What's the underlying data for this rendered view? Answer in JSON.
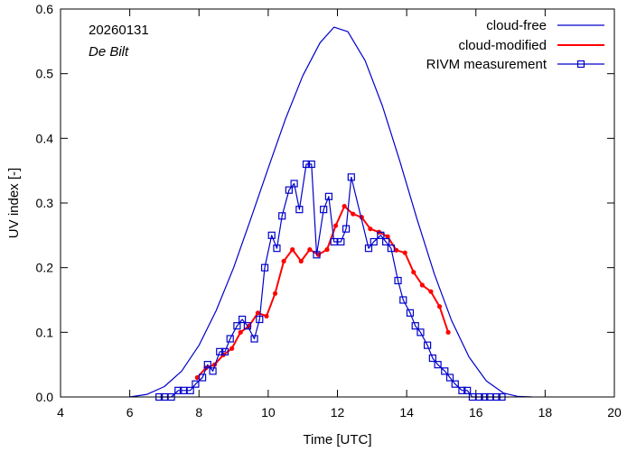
{
  "chart_data": {
    "type": "line",
    "date": "20260131",
    "station": "De Bilt",
    "xlabel": "Time  [UTC]",
    "ylabel": "UV index  [-]",
    "xlim": [
      4,
      20
    ],
    "ylim": [
      0,
      0.6
    ],
    "xticks": [
      4,
      6,
      8,
      10,
      12,
      14,
      16,
      18,
      20
    ],
    "yticks": [
      0.0,
      0.1,
      0.2,
      0.3,
      0.4,
      0.5,
      0.6
    ],
    "xtick_labels": [
      "4",
      "6",
      "8",
      "10",
      "12",
      "14",
      "16",
      "18",
      "20"
    ],
    "ytick_labels": [
      "0.0",
      "0.1",
      "0.2",
      "0.3",
      "0.4",
      "0.5",
      "0.6"
    ],
    "legend_position": "top-right",
    "series": [
      {
        "name": "cloud-free",
        "color": "#0000cc",
        "style": "line",
        "x": [
          6.0,
          6.5,
          7.0,
          7.5,
          8.0,
          8.5,
          9.0,
          9.5,
          10.0,
          10.5,
          11.0,
          11.5,
          11.9,
          12.3,
          12.8,
          13.3,
          13.8,
          14.3,
          14.8,
          15.3,
          15.8,
          16.3,
          16.8,
          17.2,
          17.6
        ],
        "y": [
          0.0,
          0.004,
          0.016,
          0.04,
          0.08,
          0.134,
          0.2,
          0.276,
          0.354,
          0.43,
          0.497,
          0.548,
          0.572,
          0.565,
          0.52,
          0.45,
          0.365,
          0.275,
          0.19,
          0.118,
          0.062,
          0.025,
          0.006,
          0.001,
          0.0
        ]
      },
      {
        "name": "cloud-modified",
        "color": "#ff0000",
        "style": "line-dot",
        "x": [
          7.95,
          8.2,
          8.45,
          8.7,
          8.95,
          9.2,
          9.45,
          9.7,
          9.95,
          10.2,
          10.45,
          10.7,
          10.95,
          11.2,
          11.45,
          11.7,
          11.95,
          12.2,
          12.45,
          12.7,
          12.95,
          13.2,
          13.45,
          13.7,
          13.95,
          14.2,
          14.45,
          14.7,
          14.95,
          15.2
        ],
        "y": [
          0.03,
          0.045,
          0.05,
          0.065,
          0.075,
          0.1,
          0.11,
          0.13,
          0.125,
          0.16,
          0.21,
          0.228,
          0.21,
          0.228,
          0.22,
          0.228,
          0.265,
          0.295,
          0.283,
          0.278,
          0.26,
          0.255,
          0.248,
          0.227,
          0.223,
          0.193,
          0.173,
          0.163,
          0.14,
          0.1
        ]
      },
      {
        "name": "RIVM measurement",
        "color": "#0000cc",
        "style": "line-square",
        "x": [
          6.85,
          7.0,
          7.2,
          7.4,
          7.55,
          7.75,
          7.9,
          8.1,
          8.25,
          8.4,
          8.6,
          8.75,
          8.9,
          9.1,
          9.25,
          9.4,
          9.6,
          9.75,
          9.9,
          10.1,
          10.25,
          10.4,
          10.6,
          10.75,
          10.9,
          11.1,
          11.25,
          11.4,
          11.6,
          11.75,
          11.9,
          12.1,
          12.25,
          12.4,
          12.9,
          13.05,
          13.25,
          13.4,
          13.55,
          13.75,
          13.9,
          14.1,
          14.25,
          14.4,
          14.6,
          14.75,
          14.9,
          15.1,
          15.25,
          15.4,
          15.6,
          15.75,
          15.9,
          16.1,
          16.25,
          16.4,
          16.6,
          16.75
        ],
        "y": [
          0.0,
          0.0,
          0.0,
          0.01,
          0.01,
          0.01,
          0.02,
          0.03,
          0.05,
          0.04,
          0.07,
          0.07,
          0.09,
          0.11,
          0.12,
          0.11,
          0.09,
          0.12,
          0.2,
          0.25,
          0.23,
          0.28,
          0.32,
          0.33,
          0.29,
          0.36,
          0.36,
          0.22,
          0.29,
          0.31,
          0.24,
          0.24,
          0.26,
          0.34,
          0.23,
          0.24,
          0.25,
          0.24,
          0.23,
          0.18,
          0.15,
          0.13,
          0.11,
          0.1,
          0.08,
          0.06,
          0.05,
          0.04,
          0.03,
          0.02,
          0.01,
          0.01,
          0.0,
          0.0,
          0.0,
          0.0,
          0.0,
          0.0
        ]
      }
    ]
  }
}
